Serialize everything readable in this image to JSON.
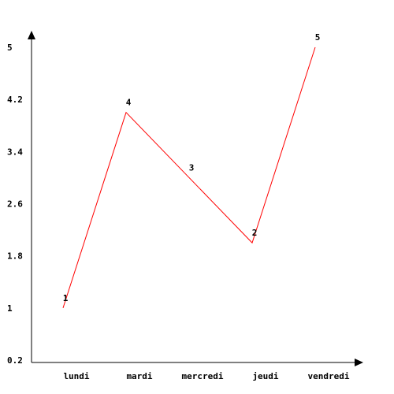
{
  "chart_data": {
    "type": "line",
    "categories": [
      "lundi",
      "mardi",
      "mercredi",
      "jeudi",
      "vendredi"
    ],
    "values": [
      1,
      4,
      3,
      2,
      5
    ],
    "data_labels": [
      "1",
      "4",
      "3",
      "2",
      "5"
    ],
    "y_ticks": [
      "5",
      "4.2",
      "3.4",
      "2.6",
      "1.8",
      "1",
      "0.2"
    ],
    "ylim": [
      0.2,
      5
    ],
    "grid": false,
    "line_color": "#ff0000",
    "axis_color": "#000000"
  }
}
